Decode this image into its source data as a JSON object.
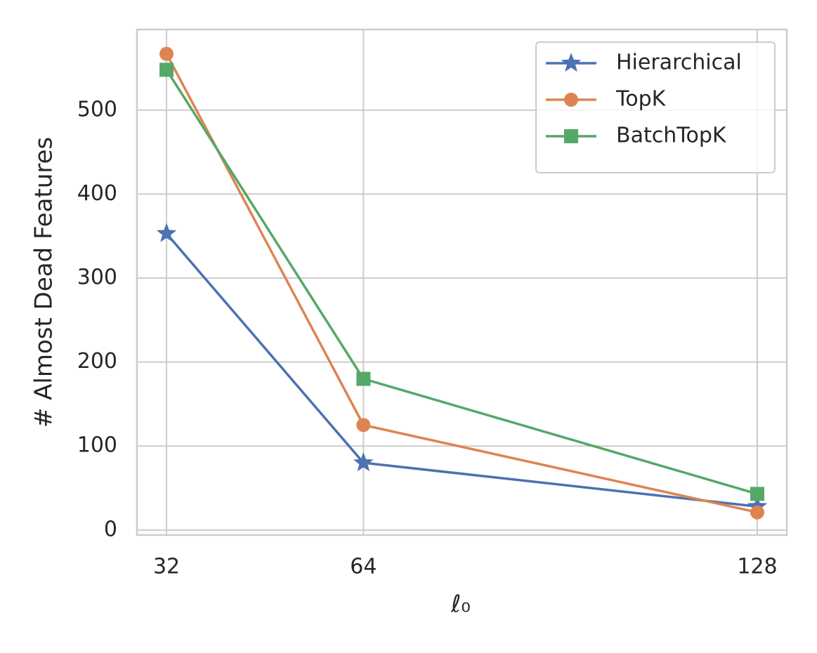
{
  "chart_data": {
    "type": "line",
    "x": [
      32,
      64,
      128
    ],
    "x_label": "ℓ₀",
    "y_label": "# Almost Dead Features",
    "series": [
      {
        "name": "Hierarchical",
        "color": "#4c72b0",
        "marker": "star",
        "values": [
          353,
          80,
          28
        ]
      },
      {
        "name": "TopK",
        "color": "#dd8452",
        "marker": "circle",
        "values": [
          567,
          125,
          21
        ]
      },
      {
        "name": "BatchTopK",
        "color": "#55a868",
        "marker": "square",
        "values": [
          548,
          180,
          43
        ]
      }
    ],
    "xlim": [
      27.2,
      132.8
    ],
    "xticks": [
      32,
      64,
      128
    ],
    "ylim": [
      -6,
      596
    ],
    "yticks": [
      0,
      100,
      200,
      300,
      400,
      500
    ],
    "grid": true,
    "legend": "upper right"
  }
}
